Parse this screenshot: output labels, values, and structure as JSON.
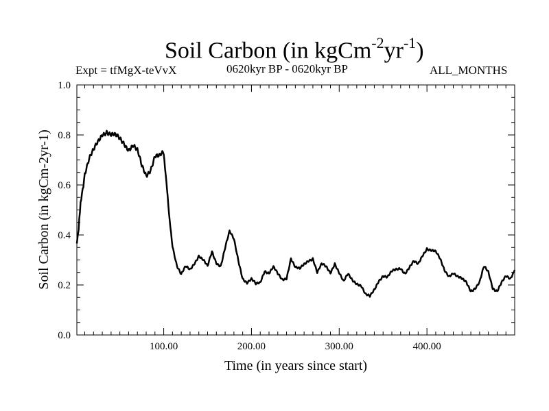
{
  "header": {
    "title_main": "Soil Carbon (in kgCm",
    "title_sup1": "-2",
    "title_mid": "yr",
    "title_sup2": "-1",
    "title_end": ")",
    "expt": "Expt = tfMgX-teVvX",
    "period": "0620kyr BP - 0620kyr BP",
    "months": "ALL_MONTHS"
  },
  "chart_data": {
    "type": "line",
    "title": "Soil Carbon (in kgCm-2yr-1)",
    "xlabel": "Time (in years since start)",
    "ylabel": "Soil Carbon (in kgCm-2yr-1)",
    "xlim": [
      1,
      500
    ],
    "ylim": [
      0.0,
      1.0
    ],
    "xticks": [
      100,
      200,
      300,
      400
    ],
    "xtick_labels": [
      "100.00",
      "200.00",
      "300.00",
      "400.00"
    ],
    "yticks": [
      0.0,
      0.2,
      0.4,
      0.6,
      0.8,
      1.0
    ],
    "ytick_labels": [
      "0.0",
      "0.2",
      "0.4",
      "0.6",
      "0.8",
      "1.0"
    ],
    "grid": false,
    "line_color": "#000000",
    "series": [
      {
        "x": [
          1,
          3,
          6,
          10,
          15,
          20,
          25,
          30,
          35,
          40,
          45,
          50,
          55,
          60,
          65,
          70,
          75,
          80,
          85,
          90,
          95,
          100,
          103,
          106,
          110,
          115,
          120,
          125,
          130,
          135,
          140,
          145,
          150,
          155,
          160,
          165,
          170,
          175,
          180,
          185,
          190,
          195,
          200,
          205,
          210,
          215,
          220,
          225,
          230,
          235,
          240,
          245,
          250,
          255,
          260,
          265,
          270,
          275,
          280,
          285,
          290,
          295,
          300,
          305,
          310,
          315,
          320,
          325,
          330,
          335,
          340,
          345,
          350,
          355,
          360,
          365,
          370,
          375,
          380,
          385,
          390,
          395,
          400,
          405,
          410,
          415,
          420,
          425,
          430,
          435,
          440,
          445,
          450,
          455,
          460,
          465,
          470,
          475,
          480,
          485,
          490,
          495,
          500
        ],
        "y": [
          0.35,
          0.42,
          0.55,
          0.65,
          0.7,
          0.73,
          0.77,
          0.81,
          0.82,
          0.8,
          0.79,
          0.78,
          0.77,
          0.75,
          0.76,
          0.73,
          0.67,
          0.64,
          0.67,
          0.72,
          0.71,
          0.72,
          0.62,
          0.48,
          0.36,
          0.28,
          0.24,
          0.27,
          0.26,
          0.29,
          0.32,
          0.3,
          0.27,
          0.33,
          0.29,
          0.28,
          0.35,
          0.41,
          0.38,
          0.3,
          0.23,
          0.21,
          0.22,
          0.2,
          0.21,
          0.26,
          0.25,
          0.27,
          0.24,
          0.22,
          0.23,
          0.31,
          0.27,
          0.26,
          0.28,
          0.3,
          0.31,
          0.25,
          0.28,
          0.27,
          0.25,
          0.29,
          0.25,
          0.21,
          0.24,
          0.22,
          0.21,
          0.2,
          0.16,
          0.15,
          0.18,
          0.22,
          0.24,
          0.23,
          0.25,
          0.26,
          0.27,
          0.25,
          0.27,
          0.29,
          0.28,
          0.32,
          0.35,
          0.34,
          0.33,
          0.3,
          0.26,
          0.24,
          0.25,
          0.23,
          0.22,
          0.21,
          0.18,
          0.19,
          0.21,
          0.27,
          0.25,
          0.19,
          0.18,
          0.21,
          0.23,
          0.22,
          0.26
        ]
      }
    ]
  }
}
